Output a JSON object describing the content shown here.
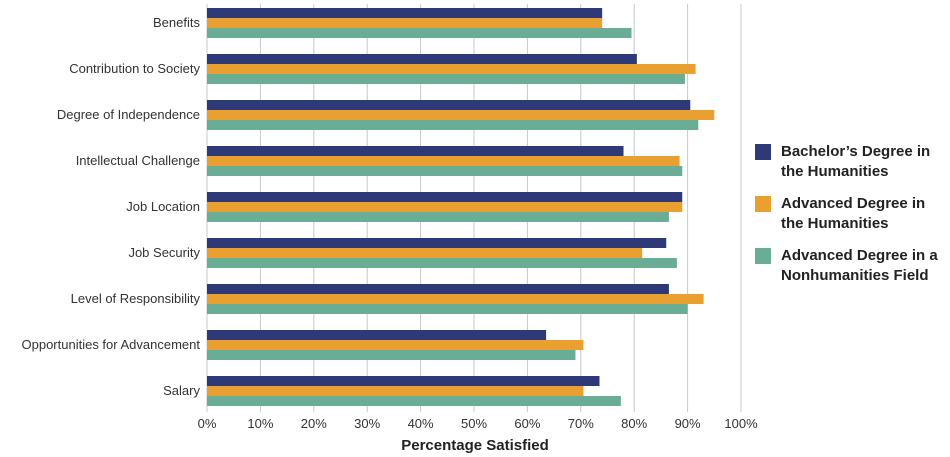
{
  "chart_data": {
    "type": "bar",
    "orientation": "horizontal",
    "categories": [
      "Benefits",
      "Contribution to Society",
      "Degree of Independence",
      "Intellectual Challenge",
      "Job Location",
      "Job Security",
      "Level of Responsibility",
      "Opportunities for Advancement",
      "Salary"
    ],
    "series": [
      {
        "name": "Bachelor’s Degree in the Humanities",
        "color": "#2e3a78",
        "values": [
          74,
          80.5,
          90.5,
          78,
          89,
          86,
          86.5,
          63.5,
          73.5
        ]
      },
      {
        "name": "Advanced Degree in the Humanities",
        "color": "#e9a031",
        "values": [
          74,
          91.5,
          95,
          88.5,
          89,
          81.5,
          93,
          70.5,
          70.5
        ]
      },
      {
        "name": "Advanced Degree in a Nonhumanities Field",
        "color": "#6aad96",
        "values": [
          79.5,
          89.5,
          92,
          89,
          86.5,
          88,
          90,
          69,
          77.5
        ]
      }
    ],
    "xlabel": "Percentage Satisfied",
    "xlim": [
      0,
      100
    ],
    "xticks": [
      "0%",
      "10%",
      "20%",
      "30%",
      "40%",
      "50%",
      "60%",
      "70%",
      "80%",
      "90%",
      "100%"
    ],
    "grid": "vertical",
    "legend_position": "right"
  }
}
